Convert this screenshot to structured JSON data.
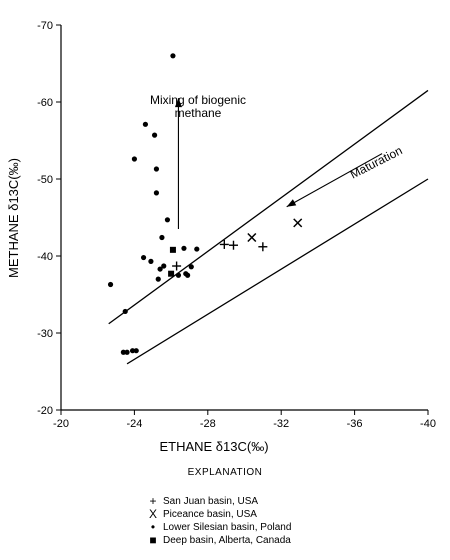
{
  "chart_data": {
    "type": "scatter",
    "xlabel": "ETHANE δ13C(‰)",
    "ylabel": "METHANE δ13C(‰)",
    "xlim": [
      -20,
      -40
    ],
    "ylim": [
      -20,
      -70
    ],
    "x_ticks": [
      "-20",
      "-24",
      "-28",
      "-32",
      "-36",
      "-40"
    ],
    "y_ticks": [
      "-20",
      "-30",
      "-40",
      "-50",
      "-60",
      "-70"
    ],
    "annotations": {
      "mixing": [
        "Mixing of biogenic",
        "methane"
      ],
      "maturation": "Maturation"
    },
    "bounding_lines": [
      {
        "x": [
          -22.6,
          -40.0
        ],
        "y": [
          -31.2,
          -61.5
        ]
      },
      {
        "x": [
          -23.6,
          -40.0
        ],
        "y": [
          -26.0,
          -50.0
        ]
      }
    ],
    "arrows": [
      {
        "label": "mixing",
        "x": [
          -26.4,
          -26.4
        ],
        "y": [
          -43.5,
          -60.5
        ]
      },
      {
        "label": "maturation",
        "x": [
          -37.5,
          -32.3
        ],
        "y": [
          -53.3,
          -46.4
        ]
      }
    ],
    "series": [
      {
        "name": "San Juan basin, USA",
        "marker": "plus",
        "x": [
          -26.3,
          -28.9,
          -29.4,
          -31.0
        ],
        "y": [
          -38.7,
          -41.5,
          -41.4,
          -41.2
        ]
      },
      {
        "name": "Piceance basin, USA",
        "marker": "x",
        "x": [
          -30.4,
          -32.9
        ],
        "y": [
          -42.4,
          -44.3
        ]
      },
      {
        "name": "Lower Silesian basin, Poland",
        "marker": "dot",
        "x": [
          -22.7,
          -23.5,
          -23.6,
          -23.9,
          -24.0,
          -24.5,
          -24.6,
          -24.9,
          -25.1,
          -25.2,
          -25.2,
          -25.3,
          -25.4,
          -25.5,
          -25.6,
          -25.8,
          -26.1,
          -26.4,
          -26.7,
          -26.8,
          -26.9,
          -27.1,
          -27.4,
          -23.4,
          -24.1
        ],
        "y": [
          -36.3,
          -32.8,
          -27.5,
          -27.7,
          -52.6,
          -39.8,
          -57.1,
          -39.3,
          -55.7,
          -51.3,
          -48.2,
          -37.0,
          -38.3,
          -42.4,
          -38.7,
          -44.7,
          -66.0,
          -37.5,
          -41.0,
          -37.7,
          -37.5,
          -38.6,
          -40.9,
          -27.5,
          -27.7
        ]
      },
      {
        "name": "Deep basin, Alberta, Canada",
        "marker": "square",
        "x": [
          -26.0,
          -26.1
        ],
        "y": [
          -37.7,
          -40.8
        ]
      }
    ]
  },
  "explanation": {
    "title": "EXPLANATION"
  },
  "legend": [
    {
      "symbol": "+",
      "marker": "plus",
      "label": "San Juan basin, USA"
    },
    {
      "symbol": "X",
      "marker": "x",
      "label": "Piceance basin, USA"
    },
    {
      "symbol": "•",
      "marker": "dot",
      "label": "Lower Silesian basin, Poland"
    },
    {
      "symbol": "■",
      "marker": "square",
      "label": "Deep basin, Alberta, Canada"
    }
  ]
}
